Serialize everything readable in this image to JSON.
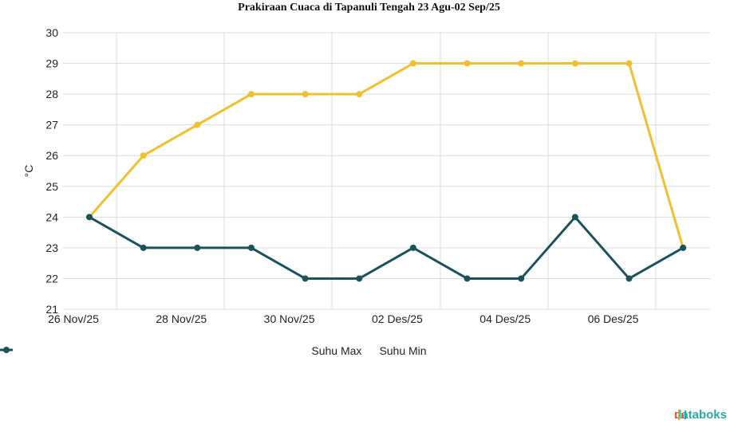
{
  "chart_data": {
    "type": "line",
    "title": "Prakiraan Cuaca di Tapanuli Tengah 23 Agu-02 Sep/25",
    "xlabel": "",
    "ylabel": "°C",
    "x_tick_labels": [
      "26 Nov/25",
      "28 Nov/25",
      "30 Nov/25",
      "02 Des/25",
      "04 Des/25",
      "06 Des/25"
    ],
    "ylim": [
      21,
      30
    ],
    "y_ticks": [
      "21",
      "22",
      "23",
      "24",
      "25",
      "26",
      "27",
      "28",
      "29",
      "30"
    ],
    "grid": true,
    "legend_position": "bottom",
    "series": [
      {
        "name": "Suhu Max",
        "color": "#f0c030",
        "values": [
          24,
          26,
          27,
          28,
          28,
          28,
          29,
          29,
          29,
          29,
          29,
          23
        ]
      },
      {
        "name": "Suhu Min",
        "color": "#1b535a",
        "values": [
          24,
          23,
          23,
          23,
          22,
          22,
          23,
          22,
          22,
          24,
          22,
          23
        ]
      }
    ]
  },
  "brand": {
    "name": "databoks",
    "icon": "bars-icon",
    "colors": [
      "#e8574a",
      "#f0a030",
      "#2aa9a0"
    ]
  }
}
